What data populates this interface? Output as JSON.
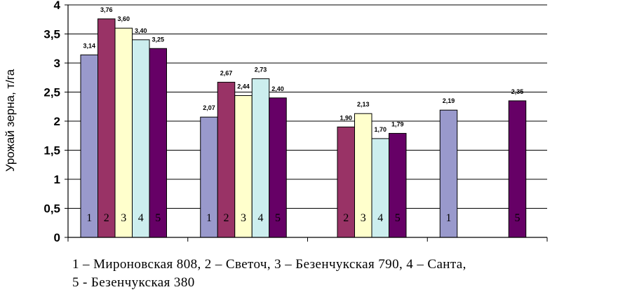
{
  "chart_data": {
    "type": "bar",
    "ylabel": "Урожай зерна, т/га",
    "ylim": [
      0,
      4
    ],
    "yticks": [
      "0",
      "0,5",
      "1",
      "1,5",
      "2",
      "2,5",
      "3",
      "3,5",
      "4"
    ],
    "grid": true,
    "series_colors": [
      "#9999cc",
      "#993366",
      "#ffffcc",
      "#cceeee",
      "#660066"
    ],
    "groups": [
      {
        "bars": [
          {
            "num": "1",
            "value": 3.14,
            "label": "3,14"
          },
          {
            "num": "2",
            "value": 3.76,
            "label": "3,76"
          },
          {
            "num": "3",
            "value": 3.6,
            "label": "3,60"
          },
          {
            "num": "4",
            "value": 3.4,
            "label": "3,40"
          },
          {
            "num": "5",
            "value": 3.25,
            "label": "3,25"
          }
        ]
      },
      {
        "bars": [
          {
            "num": "1",
            "value": 2.07,
            "label": "2,07"
          },
          {
            "num": "2",
            "value": 2.67,
            "label": "2,67"
          },
          {
            "num": "3",
            "value": 2.44,
            "label": "2,44"
          },
          {
            "num": "4",
            "value": 2.73,
            "label": "2,73"
          },
          {
            "num": "5",
            "value": 2.4,
            "label": "2,40"
          }
        ]
      },
      {
        "bars": [
          {
            "num": "2",
            "value": 1.9,
            "label": "1,90"
          },
          {
            "num": "3",
            "value": 2.13,
            "label": "2,13"
          },
          {
            "num": "4",
            "value": 1.7,
            "label": "1,70"
          },
          {
            "num": "5",
            "value": 1.79,
            "label": "1,79"
          }
        ]
      },
      {
        "bars": [
          {
            "num": "1",
            "value": 2.19,
            "label": "2,19"
          },
          {
            "num": "5",
            "value": 2.35,
            "label": "2,35"
          }
        ]
      }
    ]
  },
  "legend_lines": [
    "1 – Мироновская 808, 2 – Светоч, 3 – Безенчукская 790, 4 – Санта,",
    "5 - Безенчукская 380"
  ]
}
